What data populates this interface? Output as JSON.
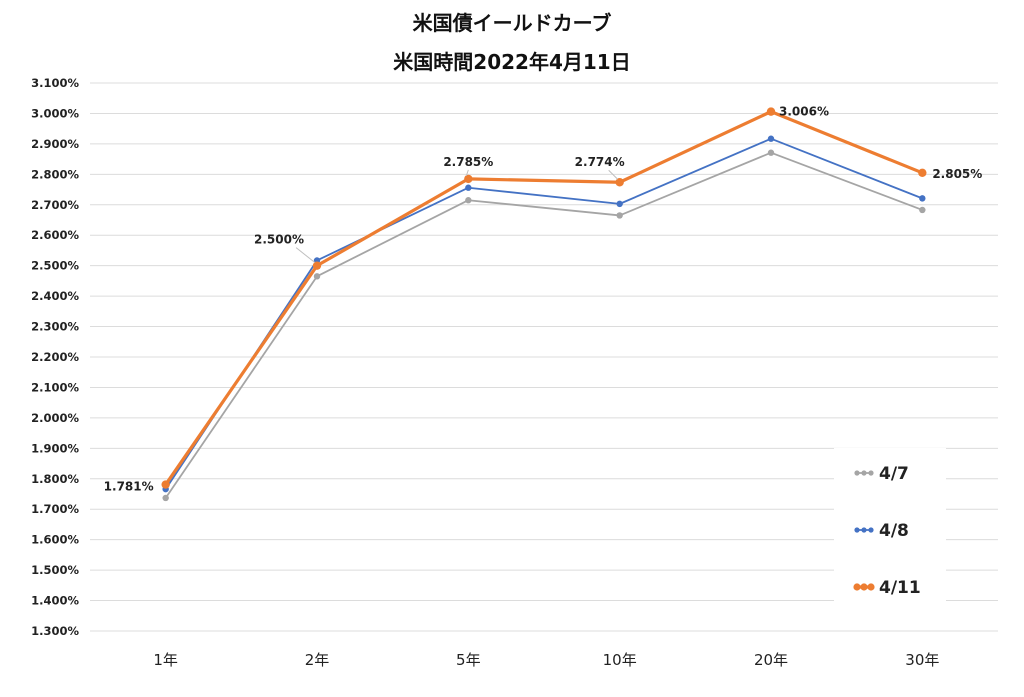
{
  "chart_data": {
    "type": "line",
    "title": "米国債イールドカーブ",
    "subtitle": "米国時間2022年4月11日",
    "categories": [
      "1年",
      "2年",
      "5年",
      "10年",
      "20年",
      "30年"
    ],
    "y_tick_labels": [
      "1.300%",
      "1.400%",
      "1.500%",
      "1.600%",
      "1.700%",
      "1.800%",
      "1.900%",
      "2.000%",
      "2.100%",
      "2.200%",
      "2.300%",
      "2.400%",
      "2.500%",
      "2.600%",
      "2.700%",
      "2.800%",
      "2.900%",
      "3.000%",
      "3.100%"
    ],
    "ylim": [
      1.3,
      3.1
    ],
    "grid": true,
    "legend_position": "bottom-right",
    "series": [
      {
        "name": "4/7",
        "color": "#a5a5a5",
        "values": [
          1.737,
          2.465,
          2.715,
          2.665,
          2.871,
          2.683
        ]
      },
      {
        "name": "4/8",
        "color": "#4472c4",
        "values": [
          1.766,
          2.517,
          2.756,
          2.703,
          2.917,
          2.721
        ]
      },
      {
        "name": "4/11",
        "color": "#ed7d31",
        "values": [
          1.781,
          2.5,
          2.785,
          2.774,
          3.006,
          2.805
        ]
      }
    ],
    "data_labels": [
      "1.781%",
      "2.500%",
      "2.785%",
      "2.774%",
      "3.006%",
      "2.805%"
    ]
  }
}
